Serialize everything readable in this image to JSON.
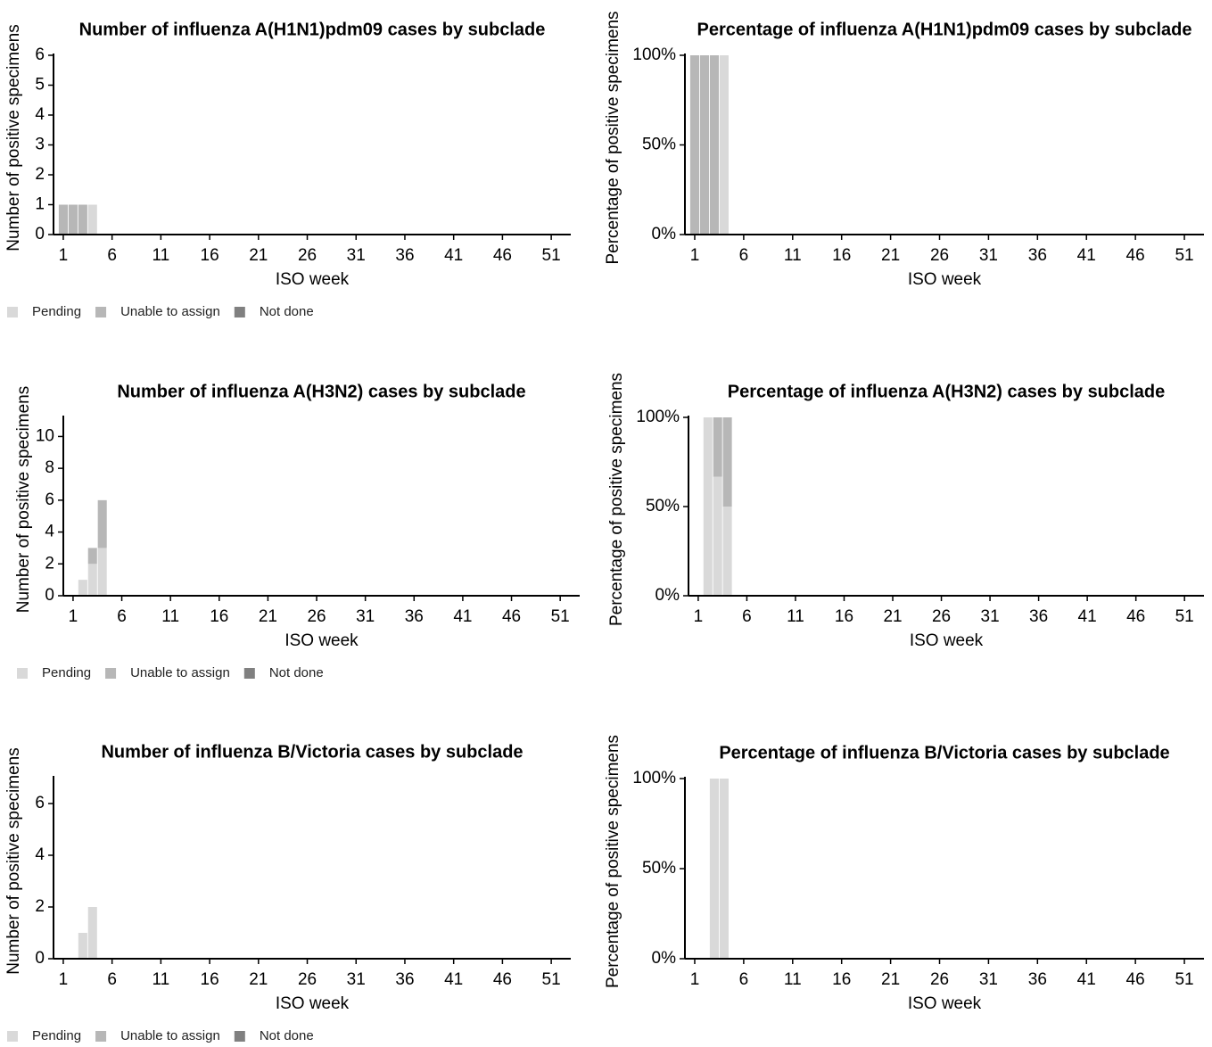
{
  "chart_data": [
    {
      "type": "bar",
      "stacked": true,
      "title": "Number of influenza A(H1N1)pdm09 cases by subclade",
      "xlabel": "ISO week",
      "ylabel": "Number of positive specimens",
      "x": [
        1,
        2,
        3,
        4
      ],
      "series": [
        {
          "name": "Pending",
          "color": "#d9d9d9",
          "values": [
            0,
            0,
            0,
            1
          ]
        },
        {
          "name": "Unable to assign",
          "color": "#b7b7b7",
          "values": [
            1,
            1,
            1,
            0
          ]
        },
        {
          "name": "Not done",
          "color": "#808080",
          "values": [
            0,
            0,
            0,
            0
          ]
        }
      ],
      "xlim": [
        0,
        53
      ],
      "xticks": [
        1,
        6,
        11,
        16,
        21,
        26,
        31,
        36,
        41,
        46,
        51
      ],
      "ylim": [
        0,
        6
      ],
      "yticks": [
        0,
        1,
        2,
        3,
        4,
        5,
        6
      ],
      "legend": "bottom-left"
    },
    {
      "type": "bar",
      "stacked": true,
      "title": "Percentage of influenza A(H1N1)pdm09 cases by subclade",
      "xlabel": "ISO week",
      "ylabel": "Percentage of positive specimens",
      "x": [
        1,
        2,
        3,
        4
      ],
      "series": [
        {
          "color": "#d9d9d9",
          "values": [
            0,
            0,
            0,
            100
          ]
        },
        {
          "color": "#b7b7b7",
          "values": [
            100,
            100,
            100,
            0
          ]
        },
        {
          "color": "#808080",
          "values": [
            0,
            0,
            0,
            0
          ]
        }
      ],
      "xlim": [
        0,
        53
      ],
      "xticks": [
        1,
        6,
        11,
        16,
        21,
        26,
        31,
        36,
        41,
        46,
        51
      ],
      "ylim": [
        0,
        100
      ],
      "yticks": [
        {
          "value": 0,
          "label": "0%"
        },
        {
          "value": 50,
          "label": "50%"
        },
        {
          "value": 100,
          "label": "100%"
        }
      ]
    },
    {
      "type": "bar",
      "stacked": true,
      "title": "Number of influenza A(H3N2) cases by subclade",
      "xlabel": "ISO week",
      "ylabel": "Number of positive specimens",
      "x": [
        1,
        2,
        3,
        4
      ],
      "series": [
        {
          "name": "Pending",
          "color": "#d9d9d9",
          "values": [
            0,
            1,
            2,
            3
          ]
        },
        {
          "name": "Unable to assign",
          "color": "#b7b7b7",
          "values": [
            0,
            0,
            1,
            3
          ]
        },
        {
          "name": "Not done",
          "color": "#808080",
          "values": [
            0,
            0,
            0,
            0
          ]
        }
      ],
      "xlim": [
        0,
        53
      ],
      "xticks": [
        1,
        6,
        11,
        16,
        21,
        26,
        31,
        36,
        41,
        46,
        51
      ],
      "ylim": [
        0,
        11.2
      ],
      "yticks": [
        0,
        2,
        4,
        6,
        8,
        10
      ],
      "legend": "bottom-left"
    },
    {
      "type": "bar",
      "stacked": true,
      "title": "Percentage of influenza A(H3N2) cases by subclade",
      "xlabel": "ISO week",
      "ylabel": "Percentage of positive specimens",
      "x": [
        1,
        2,
        3,
        4
      ],
      "series": [
        {
          "color": "#d9d9d9",
          "values": [
            0,
            100,
            66.7,
            50
          ]
        },
        {
          "color": "#b7b7b7",
          "values": [
            0,
            0,
            33.3,
            50
          ]
        },
        {
          "color": "#808080",
          "values": [
            0,
            0,
            0,
            0
          ]
        }
      ],
      "xlim": [
        0,
        53
      ],
      "xticks": [
        1,
        6,
        11,
        16,
        21,
        26,
        31,
        36,
        41,
        46,
        51
      ],
      "ylim": [
        0,
        100
      ],
      "yticks": [
        {
          "value": 0,
          "label": "0%"
        },
        {
          "value": 50,
          "label": "50%"
        },
        {
          "value": 100,
          "label": "100%"
        }
      ]
    },
    {
      "type": "bar",
      "stacked": true,
      "title": "Number of influenza B/Victoria cases by subclade",
      "xlabel": "ISO week",
      "ylabel": "Number of positive specimens",
      "x": [
        1,
        2,
        3,
        4
      ],
      "series": [
        {
          "name": "Pending",
          "color": "#d9d9d9",
          "values": [
            0,
            0,
            1,
            2
          ]
        },
        {
          "name": "Unable to assign",
          "color": "#b7b7b7",
          "values": [
            0,
            0,
            0,
            0
          ]
        },
        {
          "name": "Not done",
          "color": "#808080",
          "values": [
            0,
            0,
            0,
            0
          ]
        }
      ],
      "xlim": [
        0,
        53
      ],
      "xticks": [
        1,
        6,
        11,
        16,
        21,
        26,
        31,
        36,
        41,
        46,
        51
      ],
      "ylim": [
        0,
        7
      ],
      "yticks": [
        0,
        2,
        4,
        6
      ],
      "legend": "bottom-left"
    },
    {
      "type": "bar",
      "stacked": true,
      "title": "Percentage of influenza B/Victoria cases by subclade",
      "xlabel": "ISO week",
      "ylabel": "Percentage of positive specimens",
      "x": [
        1,
        2,
        3,
        4
      ],
      "series": [
        {
          "color": "#d9d9d9",
          "values": [
            0,
            0,
            100,
            100
          ]
        },
        {
          "color": "#b7b7b7",
          "values": [
            0,
            0,
            0,
            0
          ]
        },
        {
          "color": "#808080",
          "values": [
            0,
            0,
            0,
            0
          ]
        }
      ],
      "xlim": [
        0,
        53
      ],
      "xticks": [
        1,
        6,
        11,
        16,
        21,
        26,
        31,
        36,
        41,
        46,
        51
      ],
      "ylim": [
        0,
        100
      ],
      "yticks": [
        {
          "value": 0,
          "label": "0%"
        },
        {
          "value": 50,
          "label": "50%"
        },
        {
          "value": 100,
          "label": "100%"
        }
      ]
    }
  ]
}
